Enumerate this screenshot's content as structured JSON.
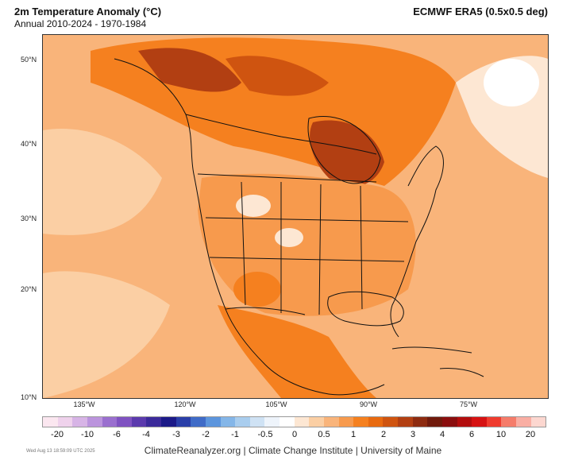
{
  "header": {
    "title": "2m Temperature Anomaly (°C)",
    "subtitle": "Annual 2010-2024 - 1970-1984",
    "dataset": "ECMWF ERA5 (0.5x0.5 deg)"
  },
  "map": {
    "lat_labels": [
      "50°N",
      "40°N",
      "30°N",
      "20°N",
      "10°N"
    ],
    "lon_labels": [
      "135°W",
      "120°W",
      "105°W",
      "90°W",
      "75°W"
    ]
  },
  "colorbar": {
    "colors": [
      "#fbe7f0",
      "#efd2ec",
      "#d7b4e6",
      "#bb94dd",
      "#9a6fcf",
      "#7f52c1",
      "#5b3aad",
      "#3b2a9a",
      "#1c1a88",
      "#2a3ea8",
      "#3f6bc7",
      "#5c95dd",
      "#84b6e8",
      "#a9cdee",
      "#cfe2f4",
      "#eef4fb",
      "#ffffff",
      "#fde7d3",
      "#fbcfa4",
      "#f9b47a",
      "#f79a4d",
      "#f5801f",
      "#e86a10",
      "#cf5410",
      "#b23f12",
      "#8d2b10",
      "#701a0c",
      "#8a0e0e",
      "#b20d0d",
      "#d61212",
      "#ef3b2e",
      "#f57c6a",
      "#f9aea3",
      "#fcd7d0"
    ],
    "labels": [
      "-20",
      "-10",
      "-6",
      "-4",
      "-3",
      "-2",
      "-1",
      "-0.5",
      "0",
      "0.5",
      "1",
      "2",
      "3",
      "4",
      "6",
      "10",
      "20"
    ]
  },
  "footer": {
    "timestamp": "Wed Aug 13 18:59:09 UTC 2025",
    "credits": "ClimateReanalyzer.org | Climate Change Institute | University of Maine"
  }
}
